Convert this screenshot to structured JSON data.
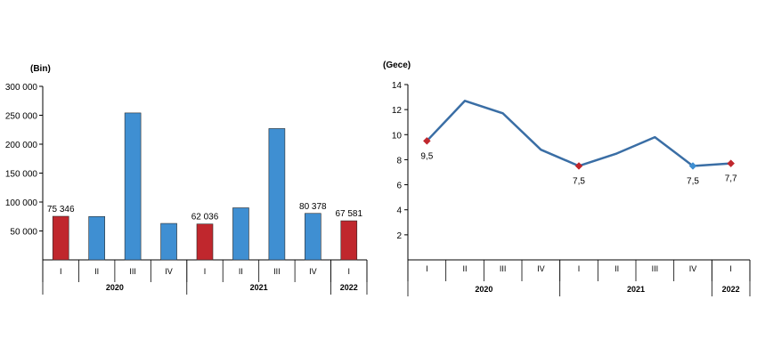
{
  "chart_data": [
    {
      "type": "bar",
      "unit_label": "(Bin)",
      "categories": [
        "I",
        "II",
        "III",
        "IV",
        "I",
        "II",
        "III",
        "IV",
        "I"
      ],
      "years": [
        {
          "label": "2020",
          "start": 0,
          "count": 4
        },
        {
          "label": "2021",
          "start": 4,
          "count": 4
        },
        {
          "label": "2022",
          "start": 8,
          "count": 1
        }
      ],
      "values": [
        75346,
        75000,
        254000,
        63000,
        62036,
        90000,
        227000,
        80378,
        67581
      ],
      "highlight": [
        true,
        false,
        false,
        false,
        true,
        false,
        false,
        false,
        true
      ],
      "data_labels": [
        "75 346",
        "",
        "",
        "",
        "62 036",
        "",
        "",
        "80 378",
        "67 581"
      ],
      "yticks": [
        50000,
        100000,
        150000,
        200000,
        250000,
        300000
      ],
      "ytick_labels": [
        "50 000",
        "100 000",
        "150 000",
        "200 000",
        "250 000",
        "300 000"
      ],
      "ylim": [
        0,
        300000
      ],
      "colors": {
        "normal": "#3f8fd2",
        "highlight": "#c0272d"
      }
    },
    {
      "type": "line",
      "unit_label": "(Gece)",
      "categories": [
        "I",
        "II",
        "III",
        "IV",
        "I",
        "II",
        "III",
        "IV",
        "I"
      ],
      "years": [
        {
          "label": "2020",
          "start": 0,
          "count": 4
        },
        {
          "label": "2021",
          "start": 4,
          "count": 4
        },
        {
          "label": "2022",
          "start": 8,
          "count": 1
        }
      ],
      "values": [
        9.5,
        12.7,
        11.7,
        8.8,
        7.5,
        8.5,
        9.8,
        7.5,
        7.7
      ],
      "markers": [
        {
          "index": 0,
          "color": "#c0272d",
          "label": "9,5"
        },
        {
          "index": 4,
          "color": "#c0272d",
          "label": "7,5"
        },
        {
          "index": 7,
          "color": "#3f8fd2",
          "label": "7,5"
        },
        {
          "index": 8,
          "color": "#c0272d",
          "label": "7,7"
        }
      ],
      "yticks": [
        2,
        4,
        6,
        8,
        10,
        12,
        14
      ],
      "ytick_labels": [
        "2",
        "4",
        "6",
        "8",
        "10",
        "12",
        "14"
      ],
      "ylim": [
        0,
        14
      ],
      "colors": {
        "line": "#3a6ea5"
      }
    }
  ]
}
